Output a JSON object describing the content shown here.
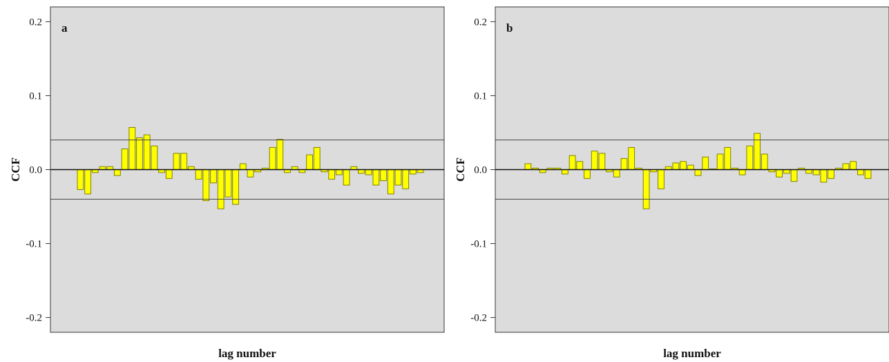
{
  "chart_data": [
    {
      "type": "bar",
      "panel_label": "a",
      "xlabel": "lag number",
      "ylabel": "CCF",
      "ylim": [
        -0.22,
        0.22
      ],
      "yticks": [
        -0.2,
        -0.1,
        0.0,
        0.1,
        0.2
      ],
      "ytick_labels": [
        "-0.2",
        "-0.1",
        "0.0",
        "0.1",
        "0.2"
      ],
      "confidence_limits": [
        0.04,
        -0.04
      ],
      "colors": {
        "bar_fill": "#ffff00",
        "bar_stroke": "#808000",
        "plot_bg": "#dcdcdc"
      },
      "values": [
        -0.027,
        -0.033,
        -0.004,
        0.004,
        0.004,
        -0.008,
        0.028,
        0.057,
        0.043,
        0.047,
        0.032,
        -0.004,
        -0.012,
        0.022,
        0.022,
        0.004,
        -0.013,
        -0.042,
        -0.018,
        -0.053,
        -0.037,
        -0.047,
        0.008,
        -0.01,
        -0.003,
        0.002,
        0.03,
        0.041,
        -0.004,
        0.004,
        -0.004,
        0.02,
        0.03,
        -0.003,
        -0.013,
        -0.007,
        -0.021,
        0.004,
        -0.005,
        -0.007,
        -0.021,
        -0.015,
        -0.033,
        -0.021,
        -0.026,
        -0.006,
        -0.004
      ]
    },
    {
      "type": "bar",
      "panel_label": "b",
      "xlabel": "lag number",
      "ylabel": "CCF",
      "ylim": [
        -0.22,
        0.22
      ],
      "yticks": [
        -0.2,
        -0.1,
        0.0,
        0.1,
        0.2
      ],
      "ytick_labels": [
        "-0.2",
        "-0.1",
        "0.0",
        "0.1",
        "0.2"
      ],
      "confidence_limits": [
        0.04,
        -0.04
      ],
      "colors": {
        "bar_fill": "#ffff00",
        "bar_stroke": "#808000",
        "plot_bg": "#dcdcdc"
      },
      "values": [
        0.008,
        0.002,
        -0.004,
        0.002,
        0.002,
        -0.006,
        0.019,
        0.011,
        -0.012,
        0.025,
        0.022,
        -0.003,
        -0.01,
        0.015,
        0.03,
        0.002,
        -0.053,
        -0.003,
        -0.026,
        0.004,
        0.009,
        0.011,
        0.006,
        -0.008,
        0.017,
        0.001,
        0.021,
        0.03,
        0.002,
        -0.007,
        0.032,
        0.049,
        0.021,
        -0.003,
        -0.01,
        -0.005,
        -0.016,
        0.002,
        -0.005,
        -0.007,
        -0.017,
        -0.012,
        0.002,
        0.008,
        0.011,
        -0.007,
        -0.012
      ]
    }
  ]
}
